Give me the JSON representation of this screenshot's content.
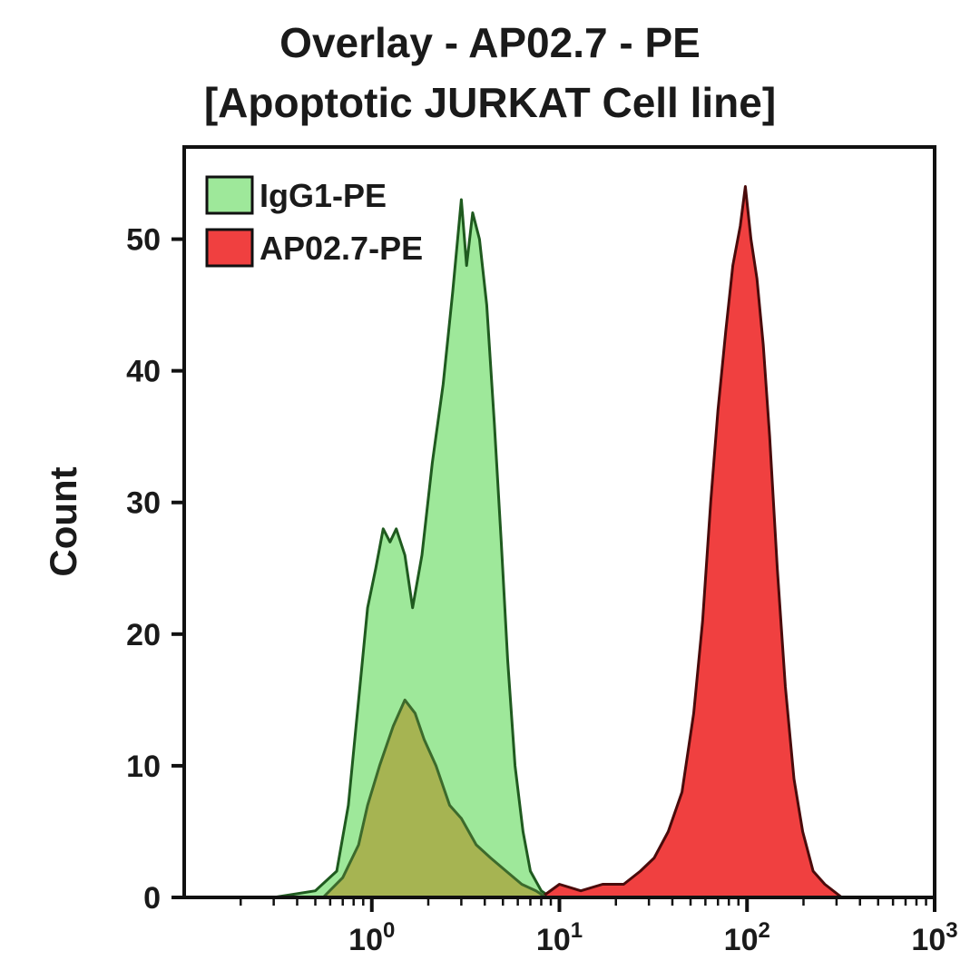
{
  "chart_data": {
    "type": "area",
    "title_line1": "Overlay - AP02.7 - PE",
    "title_line2": "[Apoptotic JURKAT Cell line]",
    "xlabel": "",
    "ylabel": "Count",
    "x_scale": "log",
    "xlim": [
      0.1,
      1000
    ],
    "ylim": [
      0,
      57
    ],
    "x_ticks": [
      {
        "value": 1,
        "base": "10",
        "exp": "0"
      },
      {
        "value": 10,
        "base": "10",
        "exp": "1"
      },
      {
        "value": 100,
        "base": "10",
        "exp": "2"
      },
      {
        "value": 1000,
        "base": "10",
        "exp": "3"
      }
    ],
    "y_ticks": [
      0,
      10,
      20,
      30,
      40,
      50
    ],
    "grid": false,
    "legend_position": "top-left",
    "series": [
      {
        "name": "IgG1-PE",
        "fill": "#9ee89a",
        "stroke": "#1f5a1f",
        "points": [
          [
            0.3,
            0
          ],
          [
            0.5,
            0.5
          ],
          [
            0.65,
            2
          ],
          [
            0.75,
            7
          ],
          [
            0.85,
            15
          ],
          [
            0.95,
            22
          ],
          [
            1.05,
            25
          ],
          [
            1.15,
            28
          ],
          [
            1.25,
            27
          ],
          [
            1.35,
            28
          ],
          [
            1.5,
            26
          ],
          [
            1.65,
            22
          ],
          [
            1.85,
            26
          ],
          [
            2.1,
            33
          ],
          [
            2.4,
            39
          ],
          [
            2.7,
            46
          ],
          [
            3.0,
            53
          ],
          [
            3.2,
            48
          ],
          [
            3.45,
            52
          ],
          [
            3.75,
            50
          ],
          [
            4.1,
            45
          ],
          [
            4.5,
            36
          ],
          [
            4.9,
            27
          ],
          [
            5.3,
            18
          ],
          [
            5.8,
            10
          ],
          [
            6.4,
            5
          ],
          [
            7.0,
            2
          ],
          [
            8.0,
            0.5
          ],
          [
            9.0,
            0
          ]
        ]
      },
      {
        "name": "AP02.7-PE",
        "fill": "#f04040",
        "stroke": "#4a0b0b",
        "points": [
          [
            8,
            0
          ],
          [
            10,
            1
          ],
          [
            13,
            0.5
          ],
          [
            17,
            1
          ],
          [
            22,
            1
          ],
          [
            27,
            2
          ],
          [
            32,
            3
          ],
          [
            38,
            5
          ],
          [
            45,
            8
          ],
          [
            52,
            14
          ],
          [
            58,
            21
          ],
          [
            64,
            30
          ],
          [
            70,
            37
          ],
          [
            77,
            43
          ],
          [
            84,
            48
          ],
          [
            92,
            51
          ],
          [
            98,
            54
          ],
          [
            105,
            50
          ],
          [
            113,
            47
          ],
          [
            122,
            42
          ],
          [
            132,
            35
          ],
          [
            145,
            25
          ],
          [
            160,
            16
          ],
          [
            178,
            9
          ],
          [
            198,
            5
          ],
          [
            225,
            2
          ],
          [
            260,
            1
          ],
          [
            320,
            0
          ]
        ]
      },
      {
        "fill": "#a8a640",
        "stroke": "#3c6a2c",
        "opacity": 0.8,
        "points": [
          [
            0.55,
            0
          ],
          [
            0.7,
            1.5
          ],
          [
            0.85,
            4
          ],
          [
            0.95,
            7
          ],
          [
            1.1,
            10
          ],
          [
            1.3,
            13
          ],
          [
            1.5,
            15
          ],
          [
            1.7,
            14
          ],
          [
            1.9,
            12
          ],
          [
            2.2,
            10
          ],
          [
            2.6,
            7
          ],
          [
            3.0,
            6
          ],
          [
            3.6,
            4
          ],
          [
            4.3,
            3
          ],
          [
            5.2,
            2
          ],
          [
            6.3,
            1
          ],
          [
            7.5,
            0.5
          ],
          [
            8.5,
            0
          ]
        ]
      }
    ]
  }
}
